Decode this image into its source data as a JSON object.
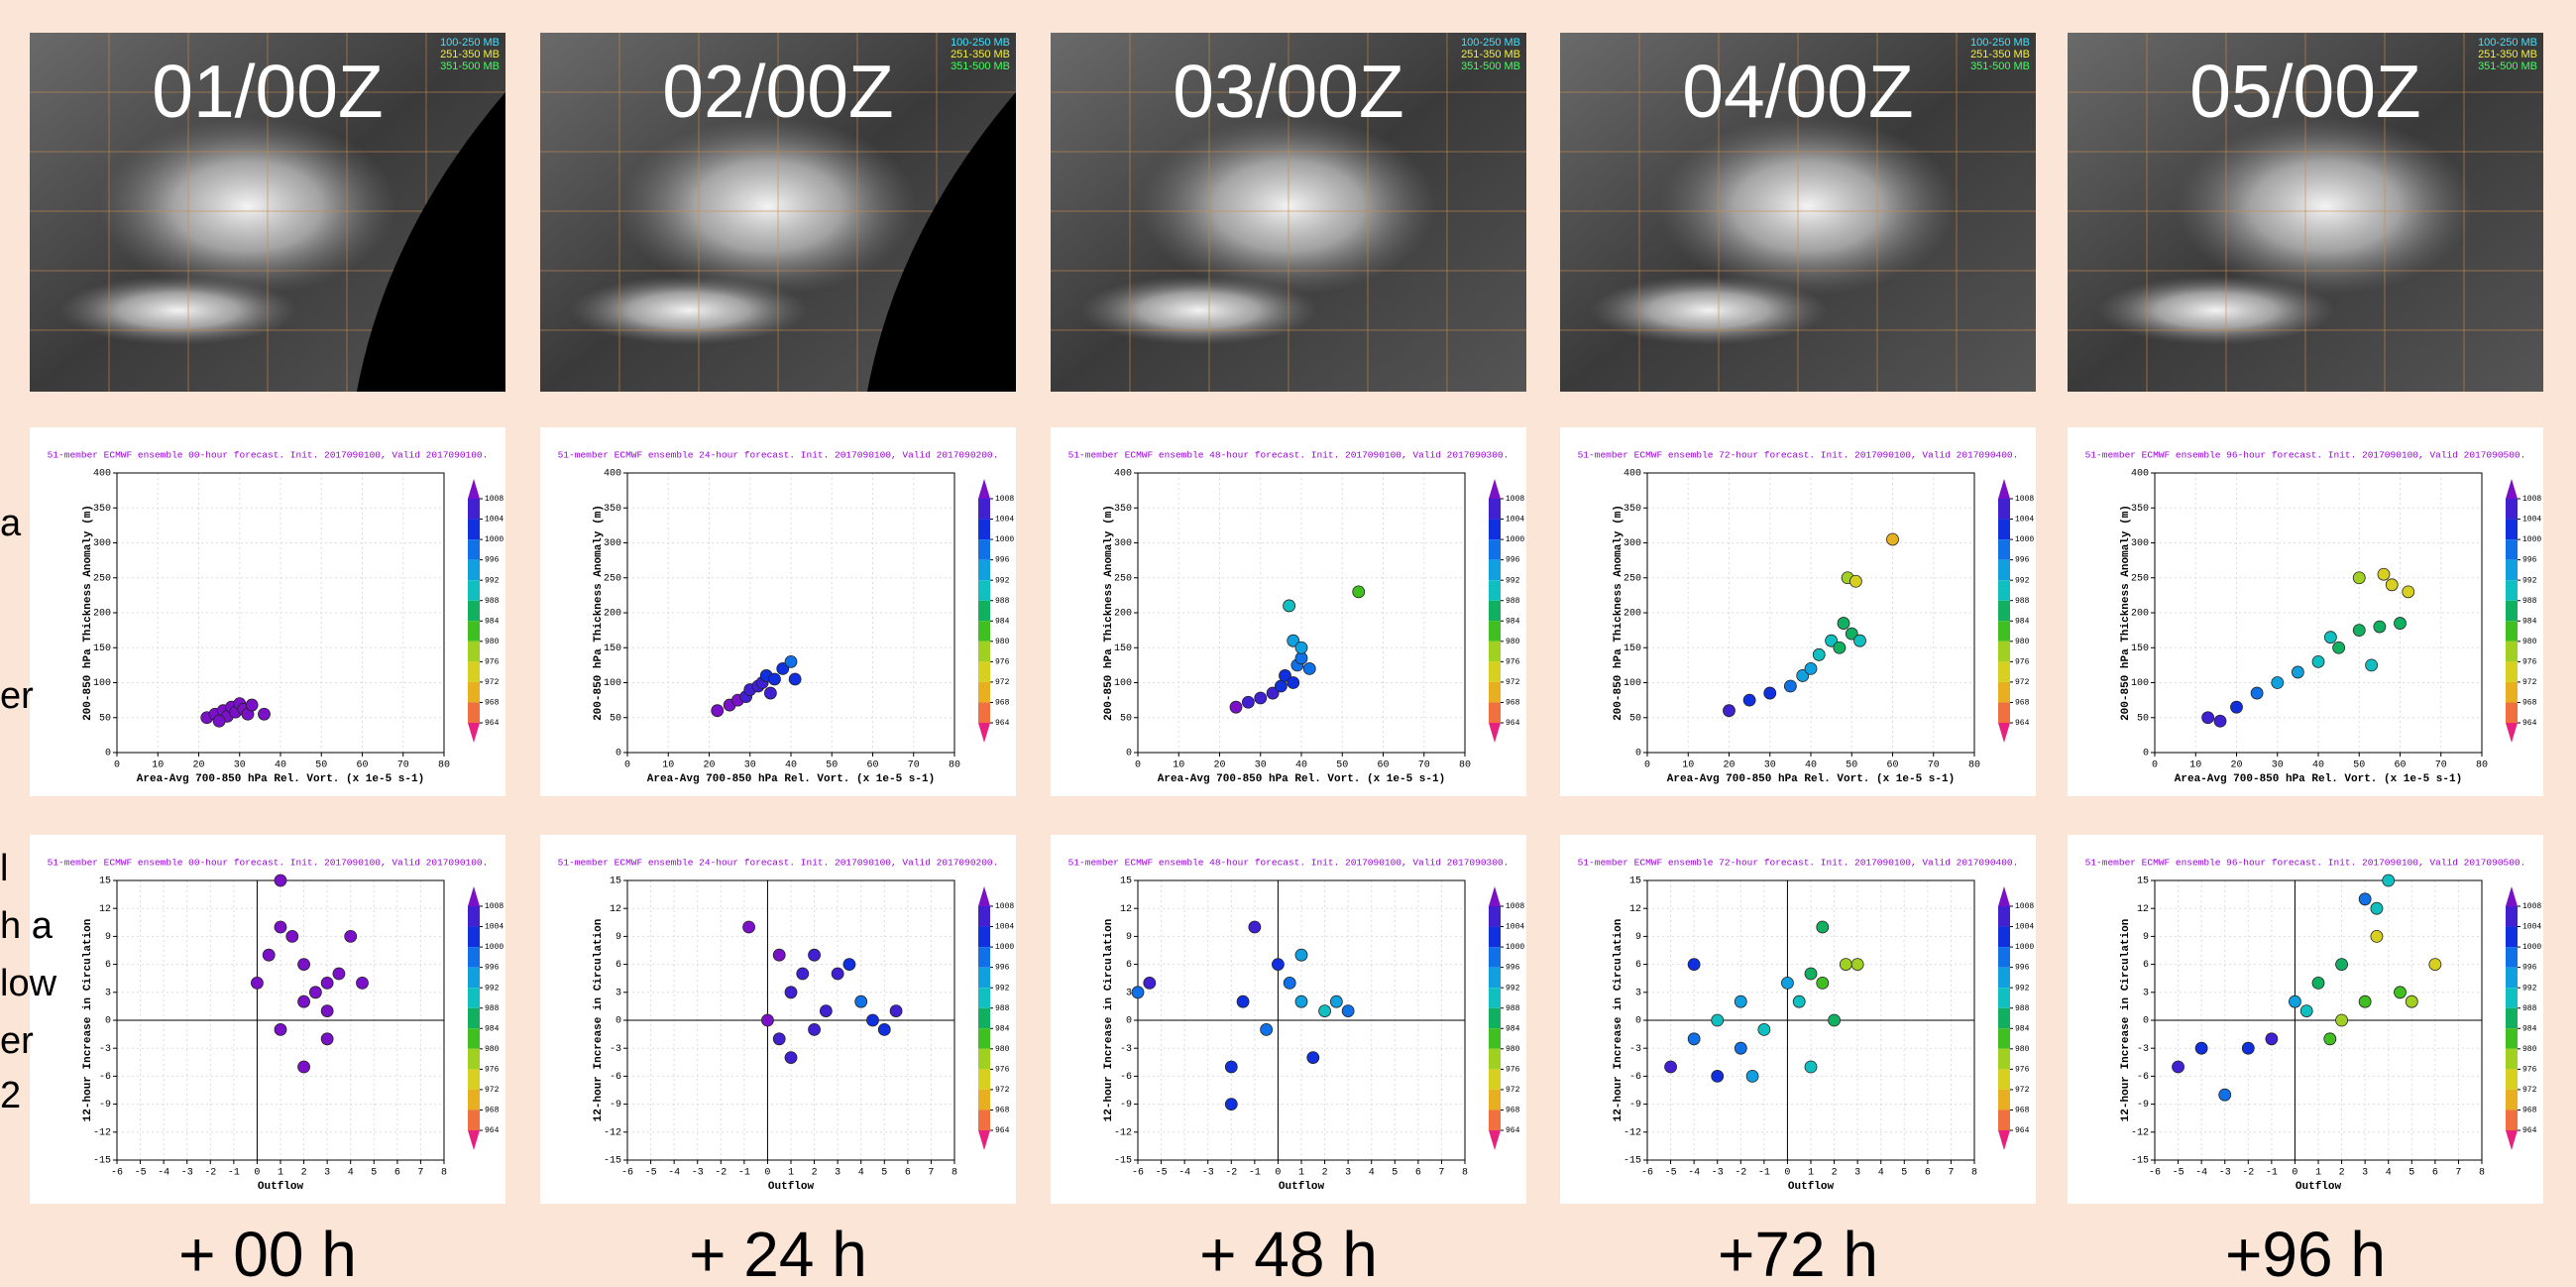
{
  "satellite_panels": [
    {
      "label": "01/00Z",
      "legend": [
        "100-250 MB",
        "251-350 MB",
        "351-500 MB"
      ]
    },
    {
      "label": "02/00Z",
      "legend": [
        "100-250 MB",
        "251-350 MB",
        "351-500 MB"
      ]
    },
    {
      "label": "03/00Z",
      "legend": [
        "100-250 MB",
        "251-350 MB",
        "351-500 MB"
      ]
    },
    {
      "label": "04/00Z",
      "legend": [
        "100-250 MB",
        "251-350 MB",
        "351-500 MB"
      ]
    },
    {
      "label": "05/00Z",
      "legend": [
        "100-250 MB",
        "251-350 MB",
        "351-500 MB"
      ]
    }
  ],
  "side_text": [
    "a",
    "er",
    "l",
    "h a",
    "low",
    "er",
    "2"
  ],
  "footer_labels": [
    "+ 00 h",
    "+ 24 h",
    "+ 48 h",
    "+72 h",
    "+96 h"
  ],
  "chart_data": [
    {
      "type": "scatter",
      "title": "51-member ECMWF ensemble 00-hour forecast. Init. 2017090100, Valid 2017090100.",
      "xlabel": "Area-Avg 700-850 hPa Rel. Vort. (x 1e-5 s-1)",
      "ylabel": "200-850 hPa Thickness Anomaly (m)",
      "xlim": [
        0,
        80
      ],
      "ylim": [
        0,
        400
      ],
      "xticks": [
        0,
        10,
        20,
        30,
        40,
        50,
        60,
        70,
        80
      ],
      "yticks": [
        0,
        50,
        100,
        150,
        200,
        250,
        300,
        350,
        400
      ],
      "grid": true,
      "origin_lines": false,
      "colorbar": {
        "ticks": [
          1008,
          1004,
          1000,
          996,
          992,
          988,
          984,
          980,
          976,
          972,
          968,
          964
        ],
        "colors": [
          "#7a10c8",
          "#4020d0",
          "#1030e0",
          "#1070e8",
          "#10a0e0",
          "#10c0c0",
          "#10b060",
          "#40c020",
          "#a0d020",
          "#d8d020",
          "#e8b020",
          "#f07040",
          "#e82080"
        ]
      },
      "x": [
        22,
        24,
        26,
        27,
        28,
        29,
        30,
        31,
        32,
        25,
        33,
        36
      ],
      "values": [
        50,
        55,
        60,
        52,
        65,
        58,
        70,
        62,
        55,
        45,
        68,
        55
      ],
      "pressure": [
        1008,
        1008,
        1008,
        1008,
        1008,
        1008,
        1008,
        1008,
        1008,
        1008,
        1008,
        1008
      ]
    },
    {
      "type": "scatter",
      "title": "51-member ECMWF ensemble 24-hour forecast. Init. 2017090100, Valid 2017090200.",
      "xlabel": "Area-Avg 700-850 hPa Rel. Vort. (x 1e-5 s-1)",
      "ylabel": "200-850 hPa Thickness Anomaly (m)",
      "xlim": [
        0,
        80
      ],
      "ylim": [
        0,
        400
      ],
      "xticks": [
        0,
        10,
        20,
        30,
        40,
        50,
        60,
        70,
        80
      ],
      "yticks": [
        0,
        50,
        100,
        150,
        200,
        250,
        300,
        350,
        400
      ],
      "grid": true,
      "origin_lines": false,
      "colorbar": {
        "ticks": [
          1008,
          1004,
          1000,
          996,
          992,
          988,
          984,
          980,
          976,
          972,
          968,
          964
        ],
        "colors": [
          "#7a10c8",
          "#4020d0",
          "#1030e0",
          "#1070e8",
          "#10a0e0",
          "#10c0c0",
          "#10b060",
          "#40c020",
          "#a0d020",
          "#d8d020",
          "#e8b020",
          "#f07040",
          "#e82080"
        ]
      },
      "x": [
        22,
        25,
        27,
        29,
        30,
        32,
        33,
        34,
        36,
        38,
        40,
        41,
        35
      ],
      "values": [
        60,
        68,
        75,
        80,
        90,
        95,
        100,
        110,
        105,
        120,
        130,
        105,
        85
      ],
      "pressure": [
        1008,
        1008,
        1008,
        1006,
        1006,
        1004,
        1004,
        1002,
        1002,
        1000,
        998,
        1000,
        1004
      ]
    },
    {
      "type": "scatter",
      "title": "51-member ECMWF ensemble 48-hour forecast. Init. 2017090100, Valid 2017090300.",
      "xlabel": "Area-Avg 700-850 hPa Rel. Vort. (x 1e-5 s-1)",
      "ylabel": "200-850 hPa Thickness Anomaly (m)",
      "xlim": [
        0,
        80
      ],
      "ylim": [
        0,
        400
      ],
      "xticks": [
        0,
        10,
        20,
        30,
        40,
        50,
        60,
        70,
        80
      ],
      "yticks": [
        0,
        50,
        100,
        150,
        200,
        250,
        300,
        350,
        400
      ],
      "grid": true,
      "origin_lines": false,
      "colorbar": {
        "ticks": [
          1008,
          1004,
          1000,
          996,
          992,
          988,
          984,
          980,
          976,
          972,
          968,
          964
        ],
        "colors": [
          "#7a10c8",
          "#4020d0",
          "#1030e0",
          "#1070e8",
          "#10a0e0",
          "#10c0c0",
          "#10b060",
          "#40c020",
          "#a0d020",
          "#d8d020",
          "#e8b020",
          "#f07040",
          "#e82080"
        ]
      },
      "x": [
        24,
        27,
        30,
        33,
        35,
        36,
        38,
        39,
        40,
        42,
        38,
        37,
        40,
        54
      ],
      "values": [
        65,
        72,
        78,
        85,
        95,
        110,
        100,
        125,
        135,
        120,
        160,
        210,
        150,
        230
      ],
      "pressure": [
        1008,
        1006,
        1006,
        1004,
        1002,
        1000,
        1000,
        998,
        996,
        996,
        994,
        988,
        994,
        980
      ]
    },
    {
      "type": "scatter",
      "title": "51-member ECMWF ensemble 72-hour forecast. Init. 2017090100, Valid 2017090400.",
      "xlabel": "Area-Avg 700-850 hPa Rel. Vort. (x 1e-5 s-1)",
      "ylabel": "200-850 hPa Thickness Anomaly (m)",
      "xlim": [
        0,
        80
      ],
      "ylim": [
        0,
        400
      ],
      "xticks": [
        0,
        10,
        20,
        30,
        40,
        50,
        60,
        70,
        80
      ],
      "yticks": [
        0,
        50,
        100,
        150,
        200,
        250,
        300,
        350,
        400
      ],
      "grid": true,
      "origin_lines": false,
      "colorbar": {
        "ticks": [
          1008,
          1004,
          1000,
          996,
          992,
          988,
          984,
          980,
          976,
          972,
          968,
          964
        ],
        "colors": [
          "#7a10c8",
          "#4020d0",
          "#1030e0",
          "#1070e8",
          "#10a0e0",
          "#10c0c0",
          "#10b060",
          "#40c020",
          "#a0d020",
          "#d8d020",
          "#e8b020",
          "#f07040",
          "#e82080"
        ]
      },
      "x": [
        20,
        25,
        30,
        35,
        38,
        40,
        42,
        45,
        47,
        48,
        50,
        52,
        49,
        51,
        60
      ],
      "values": [
        60,
        75,
        85,
        95,
        110,
        120,
        140,
        160,
        150,
        185,
        170,
        160,
        250,
        245,
        305
      ],
      "pressure": [
        1004,
        1000,
        1000,
        996,
        994,
        992,
        990,
        988,
        986,
        984,
        986,
        988,
        976,
        974,
        970
      ]
    },
    {
      "type": "scatter",
      "title": "51-member ECMWF ensemble 96-hour forecast. Init. 2017090100, Valid 2017090500.",
      "xlabel": "Area-Avg 700-850 hPa Rel. Vort. (x 1e-5 s-1)",
      "ylabel": "200-850 hPa Thickness Anomaly (m)",
      "xlim": [
        0,
        80
      ],
      "ylim": [
        0,
        400
      ],
      "xticks": [
        0,
        10,
        20,
        30,
        40,
        50,
        60,
        70,
        80
      ],
      "yticks": [
        0,
        50,
        100,
        150,
        200,
        250,
        300,
        350,
        400
      ],
      "grid": true,
      "origin_lines": false,
      "colorbar": {
        "ticks": [
          1008,
          1004,
          1000,
          996,
          992,
          988,
          984,
          980,
          976,
          972,
          968,
          964
        ],
        "colors": [
          "#7a10c8",
          "#4020d0",
          "#1030e0",
          "#1070e8",
          "#10a0e0",
          "#10c0c0",
          "#10b060",
          "#40c020",
          "#a0d020",
          "#d8d020",
          "#e8b020",
          "#f07040",
          "#e82080"
        ]
      },
      "x": [
        13,
        16,
        20,
        25,
        30,
        35,
        40,
        43,
        45,
        50,
        53,
        55,
        60,
        50,
        56,
        58,
        62
      ],
      "values": [
        50,
        45,
        65,
        85,
        100,
        115,
        130,
        165,
        150,
        175,
        125,
        180,
        185,
        250,
        255,
        240,
        230
      ],
      "pressure": [
        1004,
        1004,
        1000,
        996,
        994,
        992,
        990,
        988,
        986,
        984,
        988,
        984,
        984,
        976,
        972,
        974,
        972
      ]
    },
    {
      "type": "scatter",
      "title": "51-member ECMWF ensemble 00-hour forecast. Init. 2017090100, Valid 2017090100.",
      "xlabel": "Outflow",
      "ylabel": "12-hour Increase in Circulation",
      "xlim": [
        -6,
        8
      ],
      "ylim": [
        -15,
        15
      ],
      "xticks": [
        -6,
        -5,
        -4,
        -3,
        -2,
        -1,
        0,
        1,
        2,
        3,
        4,
        5,
        6,
        7,
        8
      ],
      "yticks": [
        -15,
        -12,
        -9,
        -6,
        -3,
        0,
        3,
        6,
        9,
        12,
        15
      ],
      "grid": true,
      "origin_lines": true,
      "colorbar": {
        "ticks": [
          1008,
          1004,
          1000,
          996,
          992,
          988,
          984,
          980,
          976,
          972,
          968,
          964
        ],
        "colors": [
          "#7a10c8",
          "#4020d0",
          "#1030e0",
          "#1070e8",
          "#10a0e0",
          "#10c0c0",
          "#10b060",
          "#40c020",
          "#a0d020",
          "#d8d020",
          "#e8b020",
          "#f07040",
          "#e82080"
        ]
      },
      "x": [
        1,
        0,
        0.5,
        1.5,
        2,
        2.5,
        3,
        3.5,
        4,
        1,
        2,
        3,
        4.5,
        2,
        1,
        3
      ],
      "values": [
        15,
        4,
        7,
        9,
        6,
        3,
        1,
        5,
        9,
        -1,
        -5,
        -2,
        4,
        2,
        10,
        4
      ],
      "pressure": [
        1008,
        1008,
        1008,
        1008,
        1008,
        1008,
        1008,
        1008,
        1008,
        1008,
        1008,
        1008,
        1008,
        1008,
        1008,
        1008
      ]
    },
    {
      "type": "scatter",
      "title": "51-member ECMWF ensemble 24-hour forecast. Init. 2017090100, Valid 2017090200.",
      "xlabel": "Outflow",
      "ylabel": "12-hour Increase in Circulation",
      "xlim": [
        -6,
        8
      ],
      "ylim": [
        -15,
        15
      ],
      "xticks": [
        -6,
        -5,
        -4,
        -3,
        -2,
        -1,
        0,
        1,
        2,
        3,
        4,
        5,
        6,
        7,
        8
      ],
      "yticks": [
        -15,
        -12,
        -9,
        -6,
        -3,
        0,
        3,
        6,
        9,
        12,
        15
      ],
      "grid": true,
      "origin_lines": true,
      "colorbar": {
        "ticks": [
          1008,
          1004,
          1000,
          996,
          992,
          988,
          984,
          980,
          976,
          972,
          968,
          964
        ],
        "colors": [
          "#7a10c8",
          "#4020d0",
          "#1030e0",
          "#1070e8",
          "#10a0e0",
          "#10c0c0",
          "#10b060",
          "#40c020",
          "#a0d020",
          "#d8d020",
          "#e8b020",
          "#f07040",
          "#e82080"
        ]
      },
      "x": [
        0,
        -0.8,
        0.5,
        1,
        1.5,
        2,
        2.5,
        3,
        1,
        2,
        3.5,
        4,
        4.5,
        5,
        5.5,
        0.5
      ],
      "values": [
        0,
        10,
        7,
        3,
        5,
        7,
        1,
        5,
        -4,
        -1,
        6,
        2,
        0,
        -1,
        1,
        -2
      ],
      "pressure": [
        1008,
        1008,
        1008,
        1006,
        1006,
        1004,
        1004,
        1004,
        1006,
        1004,
        1002,
        998,
        1000,
        1002,
        1004,
        1006
      ]
    },
    {
      "type": "scatter",
      "title": "51-member ECMWF ensemble 48-hour forecast. Init. 2017090100, Valid 2017090300.",
      "xlabel": "Outflow",
      "ylabel": "12-hour Increase in Circulation",
      "xlim": [
        -6,
        8
      ],
      "ylim": [
        -15,
        15
      ],
      "xticks": [
        -6,
        -5,
        -4,
        -3,
        -2,
        -1,
        0,
        1,
        2,
        3,
        4,
        5,
        6,
        7,
        8
      ],
      "yticks": [
        -15,
        -12,
        -9,
        -6,
        -3,
        0,
        3,
        6,
        9,
        12,
        15
      ],
      "grid": true,
      "origin_lines": true,
      "colorbar": {
        "ticks": [
          1008,
          1004,
          1000,
          996,
          992,
          988,
          984,
          980,
          976,
          972,
          968,
          964
        ],
        "colors": [
          "#7a10c8",
          "#4020d0",
          "#1030e0",
          "#1070e8",
          "#10a0e0",
          "#10c0c0",
          "#10b060",
          "#40c020",
          "#a0d020",
          "#d8d020",
          "#e8b020",
          "#f07040",
          "#e82080"
        ]
      },
      "x": [
        -5.5,
        -6,
        -2,
        -2,
        -1,
        -1.5,
        -0.5,
        0,
        0.5,
        1,
        1,
        1.5,
        2,
        2.5,
        3
      ],
      "values": [
        4,
        3,
        -9,
        -5,
        10,
        2,
        -1,
        6,
        4,
        7,
        2,
        -4,
        1,
        2,
        1
      ],
      "pressure": [
        1004,
        996,
        1000,
        1002,
        1004,
        1000,
        998,
        1000,
        996,
        994,
        992,
        1000,
        990,
        994,
        996
      ]
    },
    {
      "type": "scatter",
      "title": "51-member ECMWF ensemble 72-hour forecast. Init. 2017090100, Valid 2017090400.",
      "xlabel": "Outflow",
      "ylabel": "12-hour Increase in Circulation",
      "xlim": [
        -6,
        8
      ],
      "ylim": [
        -15,
        15
      ],
      "xticks": [
        -6,
        -5,
        -4,
        -3,
        -2,
        -1,
        0,
        1,
        2,
        3,
        4,
        5,
        6,
        7,
        8
      ],
      "yticks": [
        -15,
        -12,
        -9,
        -6,
        -3,
        0,
        3,
        6,
        9,
        12,
        15
      ],
      "grid": true,
      "origin_lines": true,
      "colorbar": {
        "ticks": [
          1008,
          1004,
          1000,
          996,
          992,
          988,
          984,
          980,
          976,
          972,
          968,
          964
        ],
        "colors": [
          "#7a10c8",
          "#4020d0",
          "#1030e0",
          "#1070e8",
          "#10a0e0",
          "#10c0c0",
          "#10b060",
          "#40c020",
          "#a0d020",
          "#d8d020",
          "#e8b020",
          "#f07040",
          "#e82080"
        ]
      },
      "x": [
        -5,
        -4,
        -3,
        -2,
        -1,
        -1.5,
        -3,
        -4,
        0,
        0.5,
        1,
        1.5,
        1.5,
        1,
        2,
        2.5,
        3,
        -2
      ],
      "values": [
        -5,
        -2,
        0,
        2,
        -1,
        -6,
        -6,
        6,
        4,
        2,
        5,
        4,
        10,
        -5,
        0,
        6,
        6,
        -3
      ],
      "pressure": [
        1004,
        996,
        990,
        992,
        988,
        994,
        1000,
        1000,
        992,
        988,
        986,
        980,
        986,
        990,
        984,
        976,
        978,
        996
      ]
    },
    {
      "type": "scatter",
      "title": "51-member ECMWF ensemble 96-hour forecast. Init. 2017090100, Valid 2017090500.",
      "xlabel": "Outflow",
      "ylabel": "12-hour Increase in Circulation",
      "xlim": [
        -6,
        8
      ],
      "ylim": [
        -15,
        15
      ],
      "xticks": [
        -6,
        -5,
        -4,
        -3,
        -2,
        -1,
        0,
        1,
        2,
        3,
        4,
        5,
        6,
        7,
        8
      ],
      "yticks": [
        -15,
        -12,
        -9,
        -6,
        -3,
        0,
        3,
        6,
        9,
        12,
        15
      ],
      "grid": true,
      "origin_lines": true,
      "colorbar": {
        "ticks": [
          1008,
          1004,
          1000,
          996,
          992,
          988,
          984,
          980,
          976,
          972,
          968,
          964
        ],
        "colors": [
          "#7a10c8",
          "#4020d0",
          "#1030e0",
          "#1070e8",
          "#10a0e0",
          "#10c0c0",
          "#10b060",
          "#40c020",
          "#a0d020",
          "#d8d020",
          "#e8b020",
          "#f07040",
          "#e82080"
        ]
      },
      "x": [
        -5,
        -4,
        -3,
        -2,
        -1,
        0,
        0.5,
        1,
        1.5,
        2,
        2,
        3,
        3.5,
        4,
        3.5,
        4.5,
        5,
        6,
        3
      ],
      "values": [
        -5,
        -3,
        -8,
        -3,
        -2,
        2,
        1,
        4,
        -2,
        0,
        6,
        2,
        12,
        15,
        9,
        3,
        2,
        6,
        13
      ],
      "pressure": [
        1004,
        1000,
        998,
        1000,
        1004,
        992,
        988,
        984,
        980,
        976,
        986,
        982,
        990,
        988,
        974,
        980,
        976,
        972,
        996
      ]
    }
  ]
}
